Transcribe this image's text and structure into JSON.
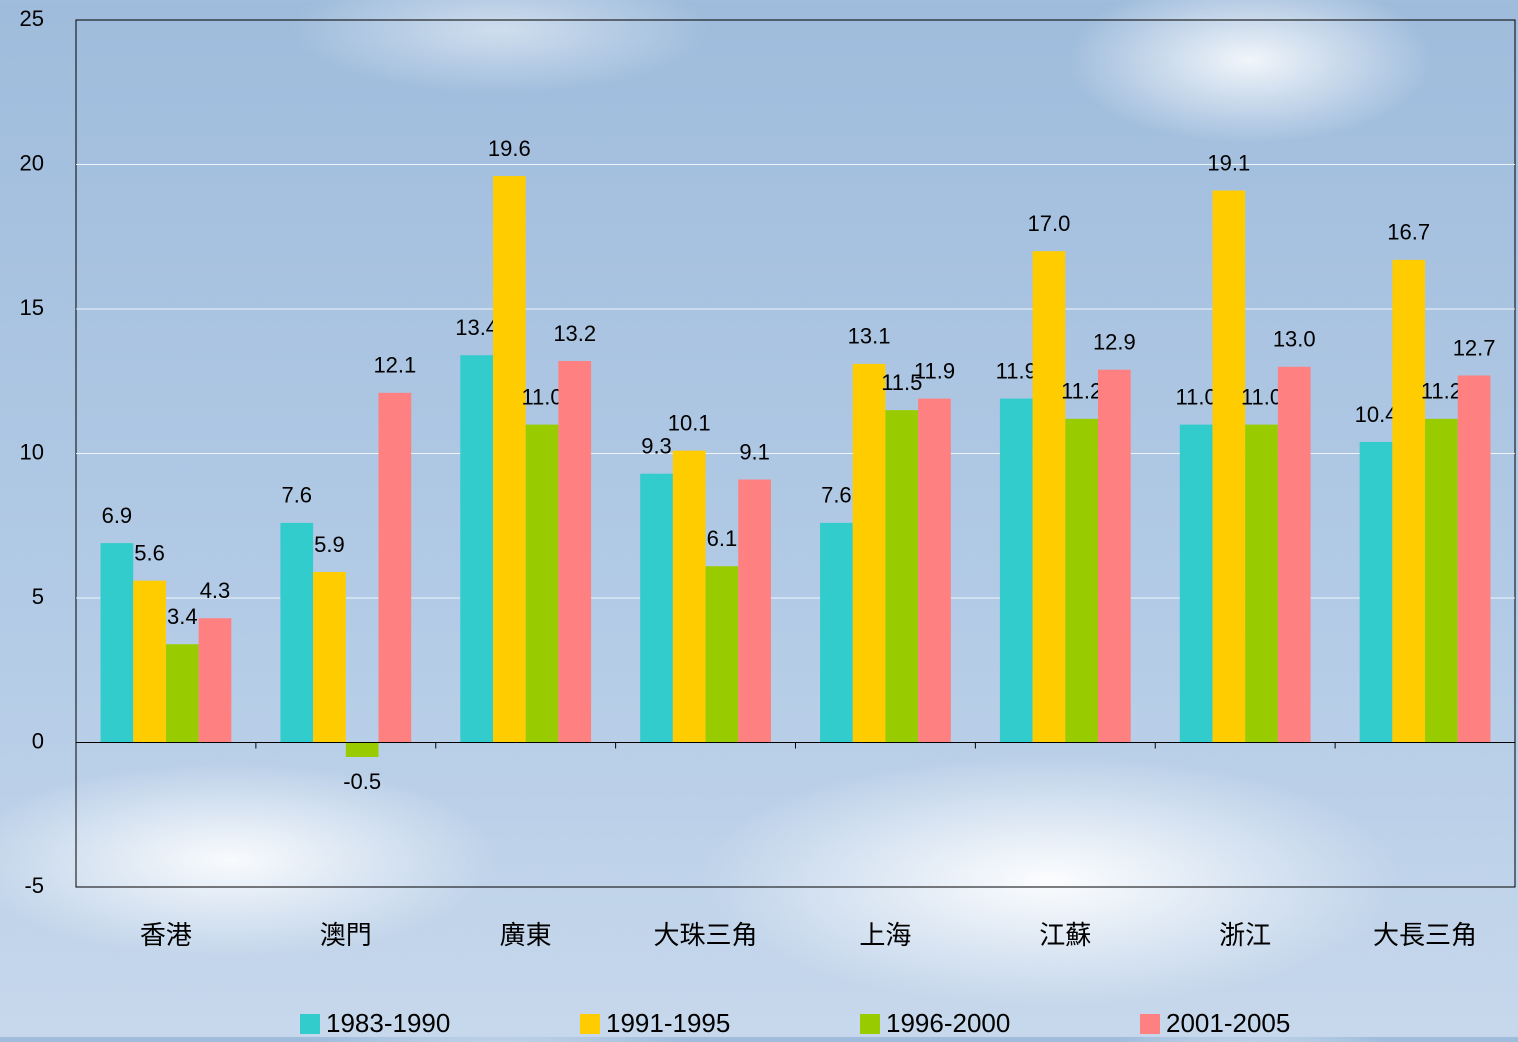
{
  "chart_data": {
    "type": "bar",
    "categories": [
      "香港",
      "澳門",
      "廣東",
      "大珠三角",
      "上海",
      "江蘇",
      "浙江",
      "大長三角"
    ],
    "series": [
      {
        "name": "1983-1990",
        "color": "#33cccc",
        "values": [
          6.9,
          7.6,
          13.4,
          9.3,
          7.6,
          11.9,
          11.0,
          10.4
        ],
        "value_labels": [
          "6.9",
          "7.6",
          "13.4",
          "9.3",
          "7.6",
          "11.9",
          "11.0",
          "10.4"
        ]
      },
      {
        "name": "1991-1995",
        "color": "#ffcc00",
        "values": [
          5.6,
          5.9,
          19.6,
          10.1,
          13.1,
          17.0,
          19.1,
          16.7
        ],
        "value_labels": [
          "5.6",
          "5.9",
          "19.6",
          "10.1",
          "13.1",
          "17.0",
          "19.1",
          "16.7"
        ]
      },
      {
        "name": "1996-2000",
        "color": "#99cc00",
        "values": [
          3.4,
          -0.5,
          11.0,
          6.1,
          11.5,
          11.2,
          11.0,
          11.2
        ],
        "value_labels": [
          "3.4",
          "-0.5",
          "11.0",
          "6.1",
          "11.5",
          "11.2",
          "11.0",
          "11.2"
        ]
      },
      {
        "name": "2001-2005",
        "color": "#ff8080",
        "values": [
          4.3,
          12.1,
          13.2,
          9.1,
          11.9,
          12.9,
          13.0,
          12.7
        ],
        "value_labels": [
          "4.3",
          "12.1",
          "13.2",
          "9.1",
          "11.9",
          "12.9",
          "13.0",
          "12.7"
        ]
      }
    ],
    "ylim": [
      -5,
      25
    ],
    "yticks": [
      -5,
      0,
      5,
      10,
      15,
      20,
      25
    ],
    "grid": true,
    "legend": "bottom"
  }
}
